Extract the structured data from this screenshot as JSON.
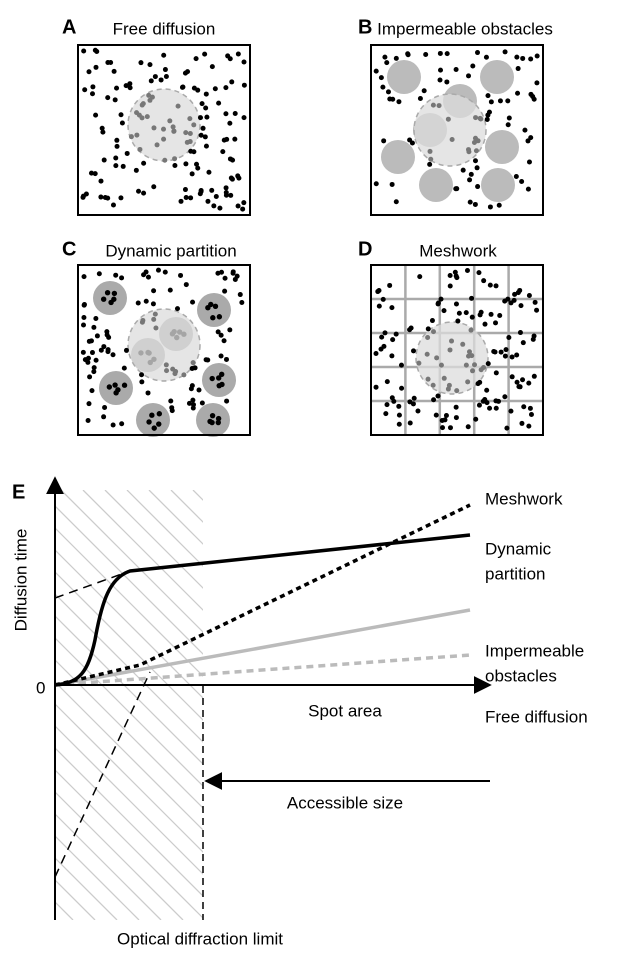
{
  "panels": [
    {
      "letter": "A",
      "title": "Free diffusion"
    },
    {
      "letter": "B",
      "title": "Impermeable obstacles"
    },
    {
      "letter": "C",
      "title": "Dynamic partition"
    },
    {
      "letter": "D",
      "title": "Meshwork"
    }
  ],
  "plot": {
    "letter": "E",
    "y_axis_label": "Diffusion time",
    "origin_label": "0",
    "x_axis_label": "Spot area",
    "accessible_size_label": "Accessible size",
    "diffraction_limit_label": "Optical diffraction limit",
    "curve_labels": [
      {
        "lines": [
          "Meshwork"
        ]
      },
      {
        "lines": [
          "Dynamic",
          "partition"
        ]
      },
      {
        "lines": [
          "Impermeable",
          "obstacles"
        ]
      },
      {
        "lines": [
          "Free diffusion"
        ]
      }
    ]
  }
}
